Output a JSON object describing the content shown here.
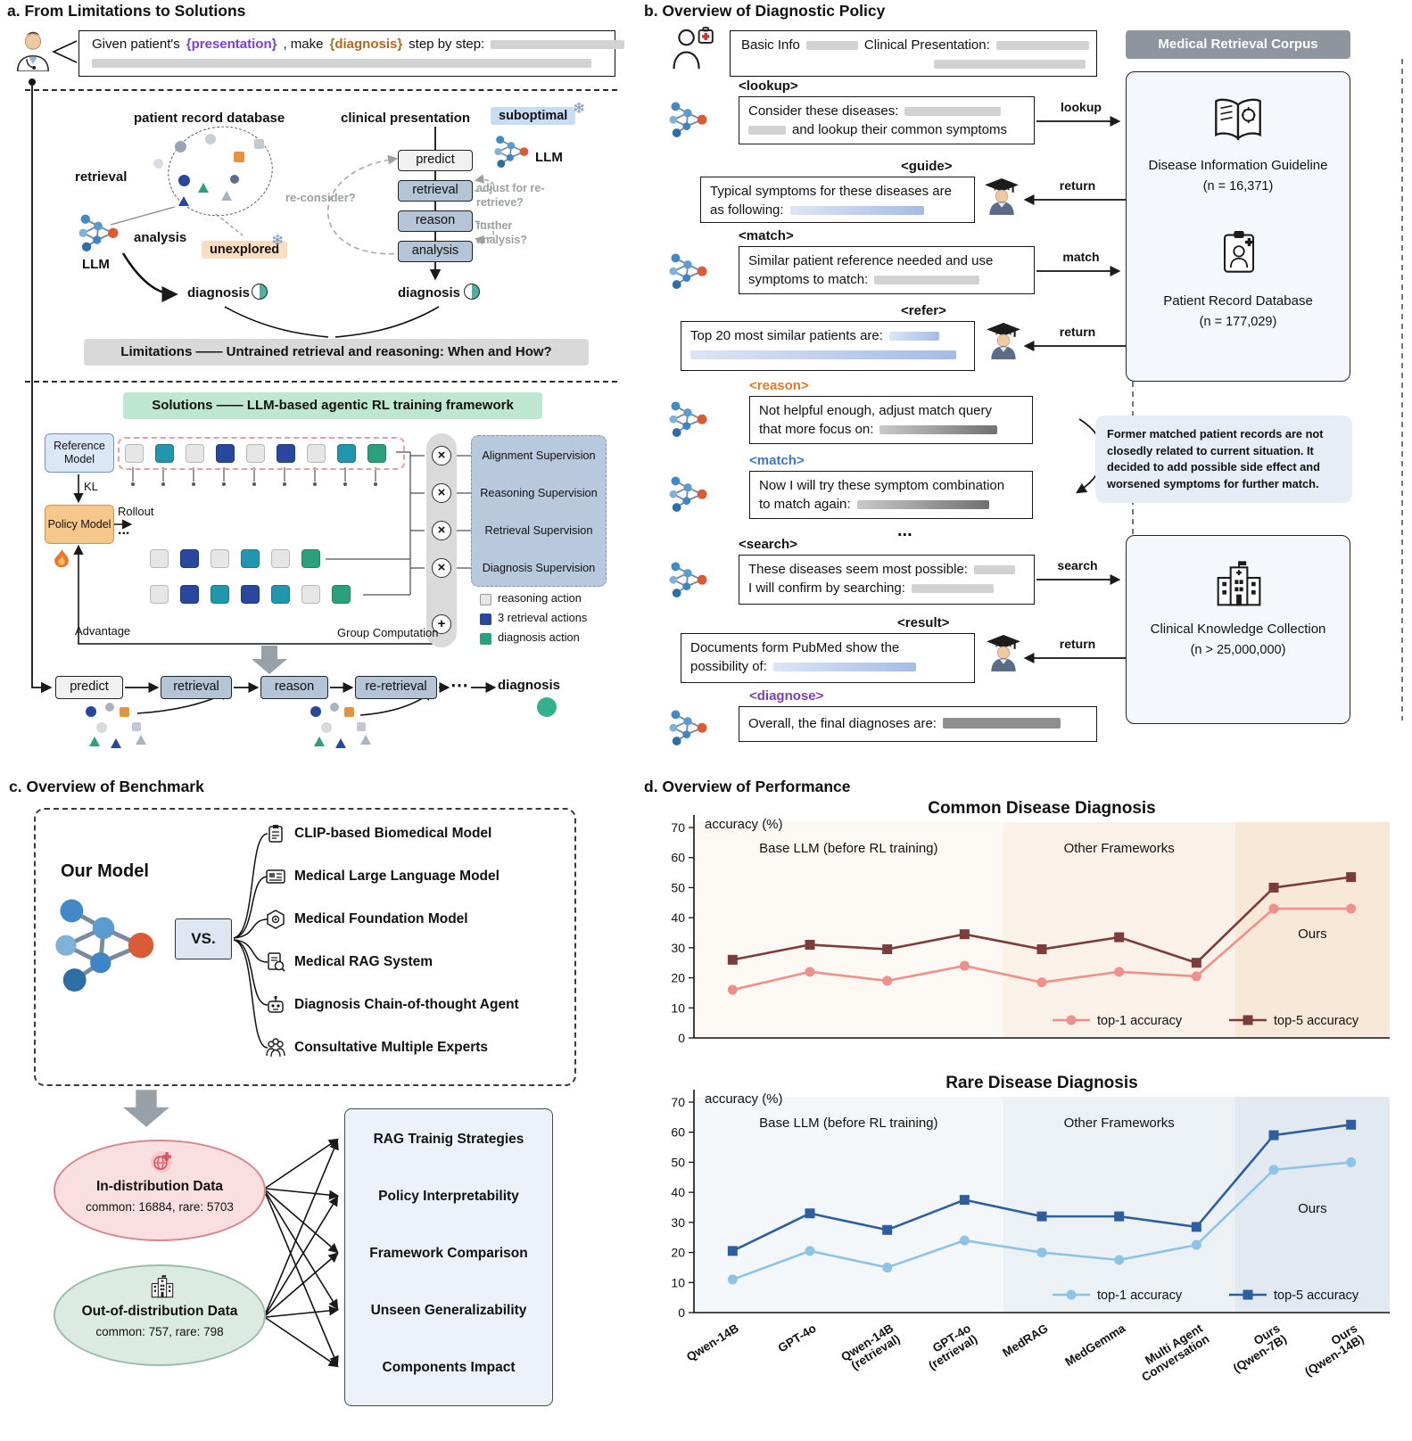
{
  "a": {
    "title": "a. From Limitations to Solutions",
    "prompt": {
      "pre": "Given patient's ",
      "presentation": "{presentation}",
      "mid": ", make ",
      "diagnosis": "{diagnosis}",
      "post": " step by step:"
    },
    "labels": {
      "patient_record_database": "patient record database",
      "clinical_presentation": "clinical presentation",
      "retrieval": "retrieval",
      "analysis": "analysis",
      "llm_left": "LLM",
      "llm_right": "LLM",
      "unexplored": "unexplored",
      "suboptimal": "suboptimal",
      "reconsider": "re-consider?",
      "adjust": "adjust for re-retrieve?",
      "further": "further analysis?",
      "diagnosis_left": "diagnosis",
      "diagnosis_right": "diagnosis",
      "snowflake": "❄"
    },
    "flow": [
      "predict",
      "retrieval",
      "reason",
      "analysis"
    ],
    "limitations": "Limitations —— Untrained retrieval and reasoning: When and How?",
    "solutions": "Solutions —— LLM-based agentic RL training framework",
    "rl": {
      "reference_model": "Reference Model",
      "kl": "KL",
      "policy_model": "Policy Model",
      "rollout": "Rollout",
      "ellipsis": "...",
      "advantage": "Advantage",
      "group_computation": "Group Computation",
      "cross": "×",
      "plus": "+",
      "supervisions": [
        "Alignment Supervision",
        "Reasoning Supervision",
        "Retrieval Supervision",
        "Diagnosis Supervision"
      ],
      "legend": [
        {
          "label": "reasoning action",
          "color": "#e6e6e6"
        },
        {
          "label": "3 retrieval actions",
          "color": "#27489c"
        },
        {
          "label": "diagnosis action",
          "color": "#2aa17c"
        }
      ],
      "token_colors": {
        "gray": "#e6e6e6",
        "teal": "#2196ad",
        "navy": "#27489c",
        "green": "#2aa17c"
      },
      "rows": [
        [
          "gray",
          "teal",
          "gray",
          "navy",
          "gray",
          "navy",
          "gray",
          "teal",
          "green"
        ],
        [
          "gray",
          "navy",
          "gray",
          "teal",
          "gray",
          "green"
        ],
        [
          "gray",
          "navy",
          "teal",
          "navy",
          "teal",
          "gray",
          "green"
        ]
      ]
    },
    "chain": [
      "predict",
      "retrieval",
      "reason",
      "re-retrieval"
    ],
    "chain_ellipsis": "⋯",
    "chain_diagnosis": "diagnosis"
  },
  "b": {
    "title": "b. Overview of Diagnostic Policy",
    "header": {
      "basic_info": "Basic Info",
      "clinical_presentation": "Clinical Presentation:"
    },
    "corpus": {
      "title": "Medical Retrieval Corpus",
      "guideline_name": "Disease Information Guideline",
      "guideline_n": "(n = 16,371)",
      "records_name": "Patient Record Database",
      "records_n": "(n = 177,029)",
      "knowledge_name": "Clinical Knowledge Collection",
      "knowledge_n": "(n > 25,000,000)"
    },
    "note": "Former matched patient records are not closedly related to current situation. It decided to add possible side effect and worsened symptoms for further match.",
    "ellipsis": "...",
    "steps": [
      {
        "tag": "<lookup>",
        "text1": "Consider these diseases:",
        "text2": "and lookup their common symptoms",
        "arrow": "lookup"
      },
      {
        "tag": "<guide>",
        "text1": "Typical symptoms for these diseases are",
        "text2": "as following:",
        "arrow": "return"
      },
      {
        "tag": "<match>",
        "text1": "Similar patient reference needed and use",
        "text2": "symptoms to match:",
        "arrow": "match"
      },
      {
        "tag": "<refer>",
        "text1": "Top 20 most similar patients are:",
        "arrow": "return"
      },
      {
        "tag": "<reason>",
        "text1": "Not helpful enough, adjust match query",
        "text2": "that more focus on:"
      },
      {
        "tag": "<match>",
        "text1": "Now I will try these symptom combination",
        "text2": "to match again:"
      },
      {
        "tag": "<search>",
        "text1": "These diseases seem most possible:",
        "text2": "I will confirm by searching:",
        "arrow": "search"
      },
      {
        "tag": "<result>",
        "text1": "Documents form PubMed show the",
        "text2": "possibility of:",
        "arrow": "return"
      },
      {
        "tag": "<diagnose>",
        "text1": "Overall, the final diagnoses are:"
      }
    ]
  },
  "c": {
    "title": "c. Overview of Benchmark",
    "our_model": "Our Model",
    "vs": "VS.",
    "competitors": [
      "CLIP-based Biomedical Model",
      "Medical Large Language Model",
      "Medical Foundation Model",
      "Medical RAG System",
      "Diagnosis Chain-of-thought Agent",
      "Consultative Multiple Experts"
    ],
    "datasets": [
      {
        "name": "In-distribution Data",
        "detail": "common: 16884, rare: 5703"
      },
      {
        "name": "Out-of-distribution Data",
        "detail": "common: 757, rare: 798"
      }
    ],
    "aspects": [
      "RAG Trainig Strategies",
      "Policy Interpretability",
      "Framework Comparison",
      "Unseen Generalizability",
      "Components Impact"
    ]
  },
  "d": {
    "title": "d. Overview of Performance"
  },
  "chart_data": [
    {
      "type": "line",
      "title": "Common Disease Diagnosis",
      "ylabel": "accuracy (%)",
      "ylim": [
        0,
        70
      ],
      "yticks": [
        0,
        10,
        20,
        30,
        40,
        50,
        60,
        70
      ],
      "categories": [
        "Qwen-14B",
        "GPT-4o",
        "Qwen-14B\n(retrieval)",
        "GPT-4o\n(retrieval)",
        "MedRAG",
        "MedGemma",
        "Multi Agent\nConversation",
        "Ours\n(Qwen-7B)",
        "Ours\n(Qwen-14B)"
      ],
      "regions": [
        {
          "label": "Base LLM (before RL training)",
          "span": [
            0,
            4
          ],
          "color": "#fcf8f3"
        },
        {
          "label": "Other Frameworks",
          "span": [
            4,
            7
          ],
          "color": "#faf1e8"
        },
        {
          "label": "Ours",
          "span": [
            7,
            9
          ],
          "color": "#f7e8d7"
        }
      ],
      "series": [
        {
          "name": "top-1 accuracy",
          "marker": "circle",
          "color": "#f0908a",
          "values": [
            16,
            22,
            19,
            24,
            18.5,
            22,
            20.5,
            43,
            43
          ]
        },
        {
          "name": "top-5 accuracy",
          "marker": "square",
          "color": "#7d3c3c",
          "values": [
            26,
            31,
            29.5,
            34.5,
            29.5,
            33.5,
            25,
            50,
            53.5
          ]
        }
      ],
      "show_xlabels": false
    },
    {
      "type": "line",
      "title": "Rare Disease Diagnosis",
      "ylabel": "accuracy (%)",
      "ylim": [
        0,
        70
      ],
      "yticks": [
        0,
        10,
        20,
        30,
        40,
        50,
        60,
        70
      ],
      "categories": [
        "Qwen-14B",
        "GPT-4o",
        "Qwen-14B\n(retrieval)",
        "GPT-4o\n(retrieval)",
        "MedRAG",
        "MedGemma",
        "Multi Agent\nConversation",
        "Ours\n(Qwen-7B)",
        "Ours\n(Qwen-14B)"
      ],
      "regions": [
        {
          "label": "Base LLM (before RL training)",
          "span": [
            0,
            4
          ],
          "color": "#f4f7fa"
        },
        {
          "label": "Other Frameworks",
          "span": [
            4,
            7
          ],
          "color": "#ecf1f6"
        },
        {
          "label": "Ours",
          "span": [
            7,
            9
          ],
          "color": "#e2e9f1"
        }
      ],
      "series": [
        {
          "name": "top-1 accuracy",
          "marker": "circle",
          "color": "#8cc3e6",
          "values": [
            11,
            20.5,
            15,
            24,
            20,
            17.5,
            22.5,
            47.5,
            50
          ]
        },
        {
          "name": "top-5 accuracy",
          "marker": "square",
          "color": "#2d5f9e",
          "values": [
            20.5,
            33,
            27.5,
            37.5,
            32,
            32,
            28.5,
            59,
            62.5
          ]
        }
      ],
      "show_xlabels": true
    }
  ]
}
